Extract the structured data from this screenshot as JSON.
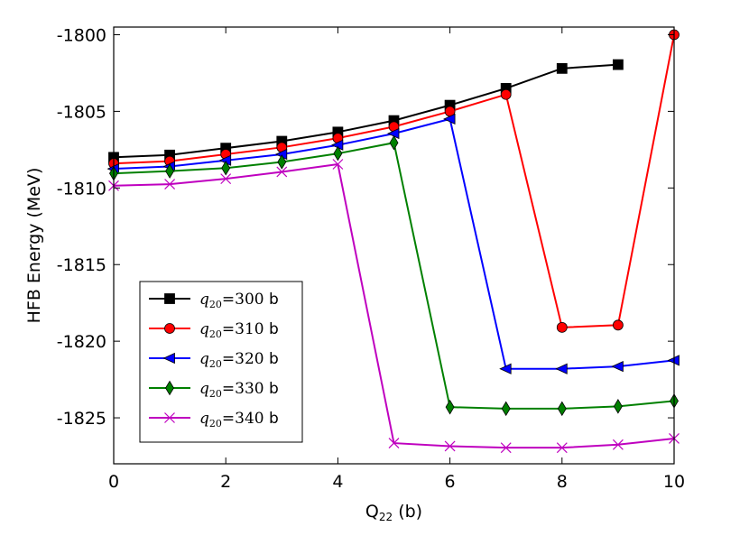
{
  "chart_data": {
    "type": "line",
    "title": "",
    "xlabel": "Q",
    "xlabel_sub": "22",
    "xlabel_suffix": " (b)",
    "ylabel": "HFB Energy (MeV)",
    "xlim": [
      0,
      10
    ],
    "ylim": [
      -1828,
      -1799.5
    ],
    "xticks": [
      0,
      2,
      4,
      6,
      8,
      10
    ],
    "yticks": [
      -1800,
      -1805,
      -1810,
      -1815,
      -1820,
      -1825
    ],
    "legend_position": "lower-left",
    "series": [
      {
        "name": "q20=300 b",
        "legend_q": "q",
        "legend_sub": "20",
        "legend_eq": "=300",
        "legend_unit": " b",
        "color": "#000000",
        "marker": "square",
        "x": [
          0,
          1,
          2,
          3,
          4,
          5,
          6,
          7,
          8,
          9
        ],
        "y": [
          -1808.0,
          -1807.85,
          -1807.4,
          -1806.95,
          -1806.35,
          -1805.6,
          -1804.6,
          -1803.5,
          -1802.2,
          -1801.95
        ]
      },
      {
        "name": "q20=310 b",
        "legend_q": "q",
        "legend_sub": "20",
        "legend_eq": "=310",
        "legend_unit": " b",
        "color": "#ff0000",
        "marker": "circle",
        "x": [
          0,
          1,
          2,
          3,
          4,
          5,
          6,
          7,
          8,
          9,
          10
        ],
        "y": [
          -1808.4,
          -1808.25,
          -1807.8,
          -1807.35,
          -1806.75,
          -1806.0,
          -1805.0,
          -1803.9,
          -1819.1,
          -1818.95,
          -1800.0
        ]
      },
      {
        "name": "q20=320 b",
        "legend_q": "q",
        "legend_sub": "20",
        "legend_eq": "=320",
        "legend_unit": " b",
        "color": "#0000ff",
        "marker": "triangle-left",
        "x": [
          0,
          1,
          2,
          3,
          4,
          5,
          6,
          7,
          8,
          9,
          10
        ],
        "y": [
          -1808.75,
          -1808.6,
          -1808.2,
          -1807.8,
          -1807.2,
          -1806.45,
          -1805.5,
          -1821.8,
          -1821.8,
          -1821.65,
          -1821.25
        ]
      },
      {
        "name": "q20=330 b",
        "legend_q": "q",
        "legend_sub": "20",
        "legend_eq": "=330",
        "legend_unit": " b",
        "color": "#008000",
        "marker": "diamond",
        "x": [
          0,
          1,
          2,
          3,
          4,
          5,
          6,
          7,
          8,
          9,
          10
        ],
        "y": [
          -1809.05,
          -1808.9,
          -1808.7,
          -1808.3,
          -1807.75,
          -1807.05,
          -1824.3,
          -1824.4,
          -1824.4,
          -1824.25,
          -1823.9
        ]
      },
      {
        "name": "q20=340 b",
        "legend_q": "q",
        "legend_sub": "20",
        "legend_eq": "=340",
        "legend_unit": " b",
        "color": "#bf00bf",
        "marker": "x",
        "x": [
          0,
          1,
          2,
          3,
          4,
          5,
          6,
          7,
          8,
          9,
          10
        ],
        "y": [
          -1809.85,
          -1809.75,
          -1809.4,
          -1808.95,
          -1808.45,
          -1826.65,
          -1826.85,
          -1826.95,
          -1826.95,
          -1826.75,
          -1826.35
        ]
      }
    ]
  }
}
